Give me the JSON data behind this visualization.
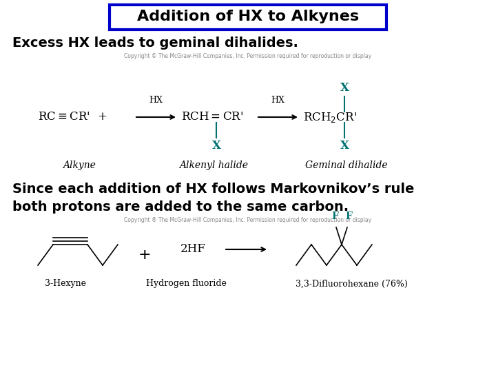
{
  "title": "Addition of HX to Alkynes",
  "title_box_color": "#0000cc",
  "title_bg_color": "#ffffff",
  "title_text_color": "#000000",
  "title_fontsize": 16,
  "bg_color": "#ffffff",
  "text1": "Excess HX leads to geminal dihalides.",
  "text1_fontsize": 14,
  "text1_color": "#000000",
  "copyright1": "Copyright © The McGraw-Hill Companies, Inc. Permission required for reproduction or display",
  "copyright1_fontsize": 5.5,
  "copyright1_color": "#888888",
  "chem_color": "#007070",
  "black_color": "#000000",
  "text2_line1": "Since each addition of HX follows Markovnikov’s rule",
  "text2_line2": "both protons are added to the same carbon.",
  "text2_fontsize": 14,
  "text2_color": "#000000",
  "copyright2": "Copyright ® The McGraw-Hill Companies, Inc. Permission required for reproduction or display",
  "copyright2_fontsize": 5.5,
  "copyright2_color": "#888888"
}
